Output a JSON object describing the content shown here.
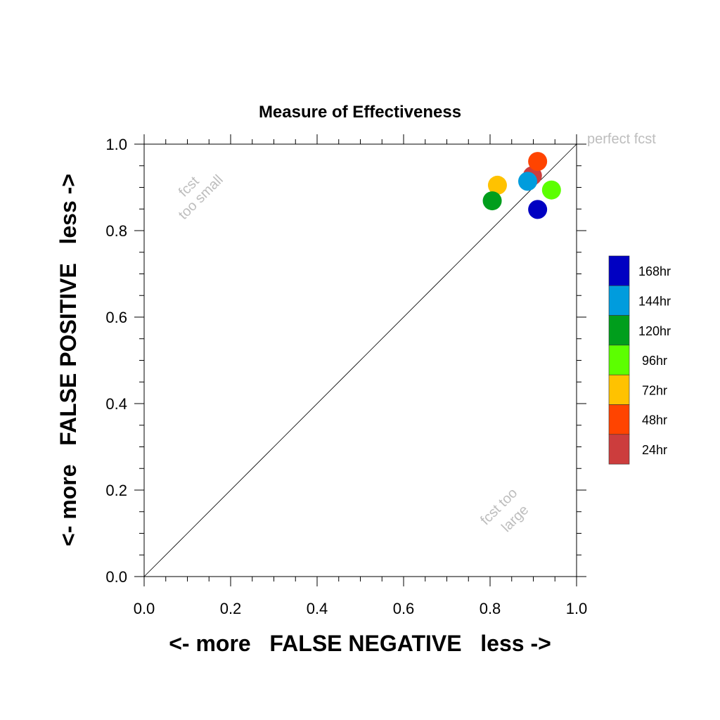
{
  "chart_data": {
    "type": "scatter",
    "title": "Measure of Effectiveness",
    "xlabel": "<- more   FALSE NEGATIVE   less ->",
    "ylabel": "<- more   FALSE POSITIVE   less ->",
    "xlim": [
      0.0,
      1.0
    ],
    "ylim": [
      0.0,
      1.0
    ],
    "xticks": [
      "0.0",
      "0.2",
      "0.4",
      "0.6",
      "0.8",
      "1.0"
    ],
    "yticks": [
      "0.0",
      "0.2",
      "0.4",
      "0.6",
      "0.8",
      "1.0"
    ],
    "grid": false,
    "diagonal_line": true,
    "annotations": {
      "perfect": "perfect fcst",
      "small_line1": "fcst",
      "small_line2": "too small",
      "large_line1": "fcst too",
      "large_line2": "large"
    },
    "series": [
      {
        "name": "24hr",
        "color": "#cc3d3d",
        "x": 0.898,
        "y": 0.927
      },
      {
        "name": "48hr",
        "color": "#ff4400",
        "x": 0.91,
        "y": 0.96
      },
      {
        "name": "72hr",
        "color": "#ffc200",
        "x": 0.817,
        "y": 0.905
      },
      {
        "name": "96hr",
        "color": "#5cff00",
        "x": 0.942,
        "y": 0.894
      },
      {
        "name": "120hr",
        "color": "#009e1c",
        "x": 0.805,
        "y": 0.869
      },
      {
        "name": "144hr",
        "color": "#009cdd",
        "x": 0.887,
        "y": 0.914
      },
      {
        "name": "168hr",
        "color": "#0000c2",
        "x": 0.91,
        "y": 0.849
      }
    ],
    "legend": {
      "placement": "right",
      "order": [
        "168hr",
        "144hr",
        "120hr",
        "96hr",
        "72hr",
        "48hr",
        "24hr"
      ]
    }
  }
}
